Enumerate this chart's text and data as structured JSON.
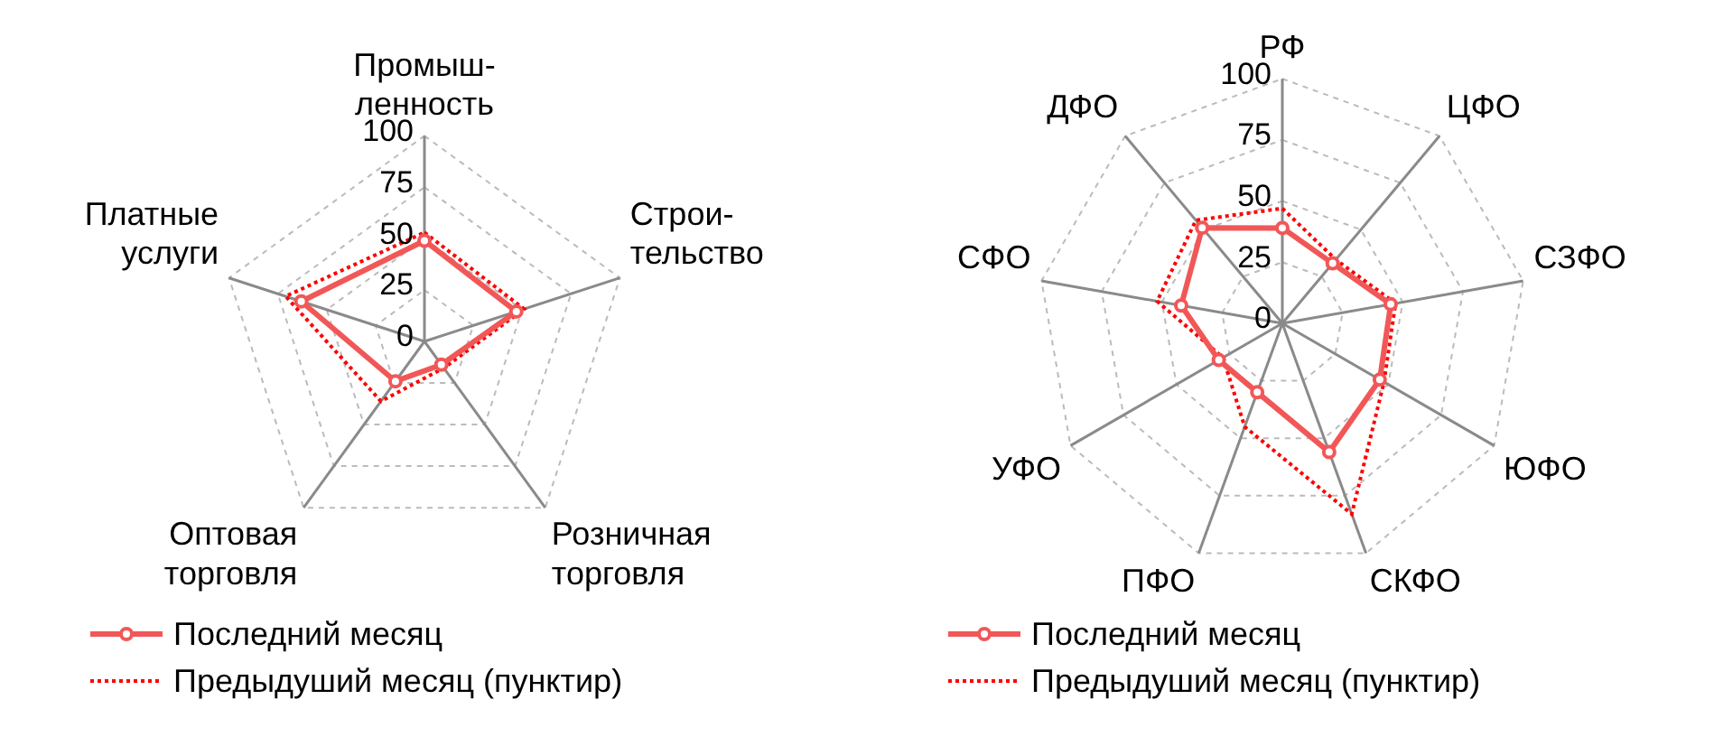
{
  "chart_data": [
    {
      "type": "radar",
      "categories": [
        "Промыш-\nленность",
        "Строи-\nтельство",
        "Розничная\nторговля",
        "Оптовая\nторговля",
        "Платные\nуслуги"
      ],
      "ylim": [
        0,
        100
      ],
      "yticks": [
        0,
        25,
        50,
        75,
        100
      ],
      "grid": true,
      "legend": "bottom",
      "series": [
        {
          "name": "Последний месяц",
          "color": "#f25757",
          "values": [
            49,
            47,
            14,
            24,
            63
          ],
          "marker": "circle",
          "line_style": "solid"
        },
        {
          "name": "Предыдуший месяц (пунктир)",
          "color": "#ff0000",
          "values": [
            53,
            51,
            16,
            36,
            71
          ],
          "marker": "none",
          "line_style": "dotted"
        }
      ]
    },
    {
      "type": "radar",
      "categories": [
        "РФ",
        "ЦФО",
        "СЗФО",
        "ЮФО",
        "СКФО",
        "ПФО",
        "УФО",
        "СФО",
        "ДФО"
      ],
      "ylim": [
        0,
        100
      ],
      "yticks": [
        0,
        25,
        50,
        75,
        100
      ],
      "grid": true,
      "legend": "bottom",
      "series": [
        {
          "name": "Последний месяц",
          "color": "#f25757",
          "values": [
            39,
            32,
            45,
            46,
            56,
            30,
            30,
            42,
            51
          ],
          "marker": "circle",
          "line_style": "solid"
        },
        {
          "name": "Предыдуший месяц (пунктир)",
          "color": "#ff0000",
          "values": [
            47,
            34,
            47,
            48,
            83,
            45,
            28,
            52,
            55
          ],
          "marker": "none",
          "line_style": "dotted"
        }
      ]
    }
  ]
}
